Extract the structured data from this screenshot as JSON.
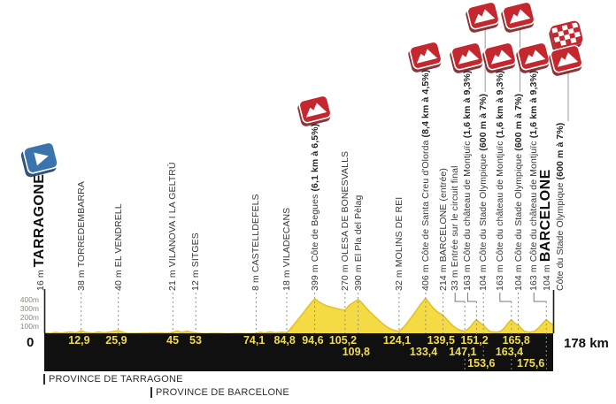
{
  "colors": {
    "yellow_fill": "#F5DB43",
    "yellow_stroke": "#E0C32A",
    "bar_black": "#101010",
    "km_text": "#F2DB4C",
    "red": "#C4282E",
    "blue": "#3B74AC",
    "dash_gray": "#8F8F8F",
    "connector_gray": "#777777",
    "axis_line": "#1b1b1b"
  },
  "axis": {
    "zero_label": "0",
    "total_label": "178 km",
    "y_labels": [
      "400m",
      "300m",
      "200m",
      "100m"
    ]
  },
  "provinces": [
    {
      "label": "PROVINCE DE TARRAGONE"
    },
    {
      "label": "PROVINCE DE BARCELONE"
    }
  ],
  "waypoints": [
    {
      "km": 0,
      "elev": "16 m",
      "name": "TARRAGONE",
      "kind": "start",
      "icon": "start-flag",
      "label_dx": -5
    },
    {
      "km": 12.9,
      "km_label": "12,9",
      "row": 1,
      "elev": "38 m",
      "name": "TORREDEMBARRA",
      "kind": "town"
    },
    {
      "km": 25.9,
      "km_label": "25,9",
      "row": 1,
      "elev": "40 m",
      "name": "EL VENDRELL",
      "kind": "town"
    },
    {
      "km": 45,
      "km_label": "45",
      "row": 1,
      "elev": "21 m",
      "name": "VILANOVA I LA GELTRÚ",
      "kind": "town"
    },
    {
      "km": 53,
      "km_label": "53",
      "row": 1,
      "elev": "12 m",
      "name": "SITGES",
      "kind": "town"
    },
    {
      "km": 74.1,
      "km_label": "74,1",
      "row": 1,
      "elev": "8 m",
      "name": "CASTELLDEFELS",
      "kind": "town"
    },
    {
      "km": 84.8,
      "km_label": "84,8",
      "row": 1,
      "elev": "18 m",
      "name": "VILADECANS",
      "kind": "town"
    },
    {
      "km": 94.6,
      "km_label": "94,6",
      "row": 1,
      "elev": "399 m",
      "name": "Côte de Begues",
      "detail": "(6,1 km à 6,5%)",
      "kind": "climb",
      "icon": "mountain"
    },
    {
      "km": 105.2,
      "km_label": "105,2",
      "row": 1,
      "elev": "270 m",
      "name": "OLESA DE BONESVALLS",
      "kind": "town"
    },
    {
      "km": 109.8,
      "km_label": "109,8",
      "row": 2,
      "elev": "390 m",
      "name": "El Pla del Pèlag",
      "kind": "town"
    },
    {
      "km": 124.1,
      "km_label": "124,1",
      "row": 1,
      "elev": "32 m",
      "name": "MOLINS DE REI",
      "kind": "town"
    },
    {
      "km": 133.4,
      "km_label": "133,4",
      "row": 2,
      "elev": "406 m",
      "name": "Côte de Santa Creu d'Olorda",
      "detail": "(8,4 km à 4,5%)",
      "kind": "climb",
      "icon": "mountain"
    },
    {
      "km": 139.5,
      "km_label": "139,5",
      "row": 1,
      "elev": "214 m",
      "name": "BARCELONE (entrée)",
      "kind": "town"
    },
    {
      "km": 147.1,
      "km_label": "147,1",
      "row": 2,
      "elev": "33 m",
      "name": "Entrée sur le circuit final",
      "kind": "town",
      "label_dx": -11
    },
    {
      "km": 151.2,
      "km_label": "151,2",
      "row": 1,
      "elev": "163 m",
      "name": "Côte du château de Montjuïc",
      "detail": "(1,6 km à 9,3%)",
      "kind": "climb",
      "icon": "mountain",
      "label_dx": -10
    },
    {
      "km": 153.6,
      "km_label": "153,6",
      "row": 3,
      "elev": "104 m",
      "name": "Côte du Stade Olympique",
      "detail": "(600 m à 7%)",
      "kind": "climb",
      "icon": "mountain-top"
    },
    {
      "km": 163.4,
      "km_label": "163,4",
      "row": 2,
      "elev": "163 m",
      "name": "Côte du château de Montjuïc",
      "detail": "(1,6 km à 9,3%)",
      "kind": "climb",
      "icon": "mountain",
      "label_dx": -13
    },
    {
      "km": 165.8,
      "km_label": "165,8",
      "row": 1,
      "elev": "104 m",
      "name": "Côte du Stade Olympique",
      "detail": "(600 m à 7%)",
      "kind": "climb",
      "icon": "mountain-top"
    },
    {
      "km": 175.6,
      "km_label": "175,6",
      "row": 3,
      "elev": "163 m",
      "name": "Côte du château de Montjuïc",
      "detail": "(1,6 km à 9,3%)",
      "kind": "climb",
      "icon": "mountain",
      "label_dx": -14
    },
    {
      "km": 178,
      "elev": "104 m",
      "name": "BARCELONE",
      "subtitle": "Côte du Stade Olympique",
      "subtitle_detail": "(600 m à 7%)",
      "kind": "finish",
      "icon": "finish",
      "label_dx": -8
    }
  ],
  "chart_data": {
    "type": "area",
    "x_unit": "km",
    "y_unit": "m",
    "x_range": [
      0,
      178
    ],
    "y_range": [
      0,
      480
    ],
    "y_ticks_m": [
      100,
      200,
      300,
      400
    ],
    "grid": "dashed vertical lines at waypoints",
    "legend": "none",
    "profile": [
      [
        0,
        16
      ],
      [
        2,
        8
      ],
      [
        4,
        20
      ],
      [
        6,
        12
      ],
      [
        9,
        24
      ],
      [
        11,
        14
      ],
      [
        12.9,
        38
      ],
      [
        14.5,
        20
      ],
      [
        17,
        12
      ],
      [
        19,
        26
      ],
      [
        21,
        14
      ],
      [
        23.5,
        26
      ],
      [
        25.9,
        40
      ],
      [
        27.5,
        20
      ],
      [
        29,
        10
      ],
      [
        32,
        8
      ],
      [
        36,
        11
      ],
      [
        40,
        14
      ],
      [
        43,
        10
      ],
      [
        45,
        21
      ],
      [
        46.5,
        36
      ],
      [
        48,
        20
      ],
      [
        50,
        32
      ],
      [
        53,
        12
      ],
      [
        56,
        6
      ],
      [
        60,
        9
      ],
      [
        64,
        5
      ],
      [
        68,
        8
      ],
      [
        71,
        5
      ],
      [
        74.1,
        8
      ],
      [
        75.5,
        22
      ],
      [
        77,
        12
      ],
      [
        79,
        26
      ],
      [
        81,
        14
      ],
      [
        83,
        22
      ],
      [
        84.8,
        18
      ],
      [
        86,
        55
      ],
      [
        88,
        135
      ],
      [
        90,
        215
      ],
      [
        92,
        300
      ],
      [
        93.5,
        360
      ],
      [
        94.6,
        399
      ],
      [
        95.8,
        372
      ],
      [
        97.5,
        338
      ],
      [
        99,
        318
      ],
      [
        101,
        300
      ],
      [
        103,
        284
      ],
      [
        105.2,
        270
      ],
      [
        106.5,
        322
      ],
      [
        108,
        356
      ],
      [
        109.8,
        390
      ],
      [
        111,
        358
      ],
      [
        112.5,
        300
      ],
      [
        114,
        248
      ],
      [
        116,
        188
      ],
      [
        118,
        128
      ],
      [
        120,
        78
      ],
      [
        122,
        46
      ],
      [
        124.1,
        32
      ],
      [
        126,
        88
      ],
      [
        128,
        172
      ],
      [
        130,
        262
      ],
      [
        131.5,
        332
      ],
      [
        133.4,
        406
      ],
      [
        134.5,
        358
      ],
      [
        136,
        298
      ],
      [
        137.5,
        252
      ],
      [
        139.5,
        214
      ],
      [
        141,
        158
      ],
      [
        142.5,
        108
      ],
      [
        144,
        68
      ],
      [
        145.5,
        44
      ],
      [
        147.1,
        33
      ],
      [
        149,
        80
      ],
      [
        150.4,
        140
      ],
      [
        151.2,
        163
      ],
      [
        152.4,
        128
      ],
      [
        153.6,
        104
      ],
      [
        154.6,
        66
      ],
      [
        156,
        28
      ],
      [
        158,
        22
      ],
      [
        159.5,
        30
      ],
      [
        161,
        72
      ],
      [
        162.4,
        132
      ],
      [
        163.4,
        163
      ],
      [
        164.6,
        122
      ],
      [
        165.8,
        104
      ],
      [
        166.8,
        66
      ],
      [
        168,
        30
      ],
      [
        170,
        22
      ],
      [
        171.5,
        32
      ],
      [
        173,
        72
      ],
      [
        174.6,
        132
      ],
      [
        175.6,
        163
      ],
      [
        176.6,
        134
      ],
      [
        178,
        104
      ]
    ],
    "markers_note": "see waypoints array: km, elevation label, name, climb details"
  }
}
